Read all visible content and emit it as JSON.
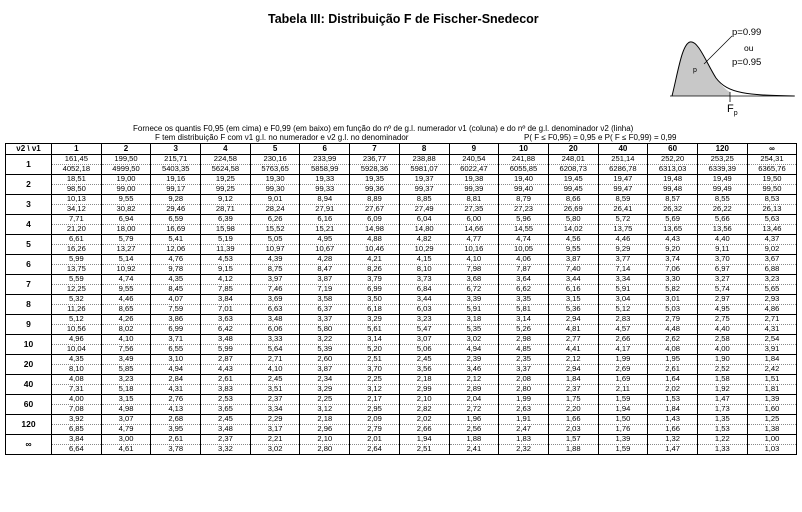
{
  "header": {
    "title": "Tabela III:   Distribuição F de Fischer-Snedecor"
  },
  "figure": {
    "label_top": "p=0.99",
    "label_or": "ou",
    "label_bottom": "p=0.95",
    "label_inner": "p",
    "label_fp": "F"
  },
  "description": {
    "line1": "Fornece os quantis F0,95 (em cima) e F0,99 (em baixo) em função do nº de g.l. numerador  ν1 (coluna) e do nº de g.l. denominador  ν2 (linha)",
    "line2": "F tem distribuição  F com ν1 g.l. no numerador e ν2 g.l. no denominador",
    "line2_right": "P( F ≤ F0,95) = 0,95  e  P( F ≤ F0,99) = 0,99"
  },
  "table": {
    "corner": "ν2 \\ ν1",
    "columns": [
      "1",
      "2",
      "3",
      "4",
      "5",
      "6",
      "7",
      "8",
      "9",
      "10",
      "20",
      "40",
      "60",
      "120",
      "∞"
    ],
    "rows": [
      {
        "label": "1",
        "p95": [
          "161,45",
          "199,50",
          "215,71",
          "224,58",
          "230,16",
          "233,99",
          "236,77",
          "238,88",
          "240,54",
          "241,88",
          "248,01",
          "251,14",
          "252,20",
          "253,25",
          "254,31"
        ],
        "p99": [
          "4052,18",
          "4999,50",
          "5403,35",
          "5624,58",
          "5763,65",
          "5858,99",
          "5928,36",
          "5981,07",
          "6022,47",
          "6055,85",
          "6208,73",
          "6286,78",
          "6313,03",
          "6339,39",
          "6365,76"
        ]
      },
      {
        "label": "2",
        "p95": [
          "18,51",
          "19,00",
          "19,16",
          "19,25",
          "19,30",
          "19,33",
          "19,35",
          "19,37",
          "19,38",
          "19,40",
          "19,45",
          "19,47",
          "19,48",
          "19,49",
          "19,50"
        ],
        "p99": [
          "98,50",
          "99,00",
          "99,17",
          "99,25",
          "99,30",
          "99,33",
          "99,36",
          "99,37",
          "99,39",
          "99,40",
          "99,45",
          "99,47",
          "99,48",
          "99,49",
          "99,50"
        ]
      },
      {
        "label": "3",
        "p95": [
          "10,13",
          "9,55",
          "9,28",
          "9,12",
          "9,01",
          "8,94",
          "8,89",
          "8,85",
          "8,81",
          "8,79",
          "8,66",
          "8,59",
          "8,57",
          "8,55",
          "8,53"
        ],
        "p99": [
          "34,12",
          "30,82",
          "29,46",
          "28,71",
          "28,24",
          "27,91",
          "27,67",
          "27,49",
          "27,35",
          "27,23",
          "26,69",
          "26,41",
          "26,32",
          "26,22",
          "26,13"
        ]
      },
      {
        "label": "4",
        "p95": [
          "7,71",
          "6,94",
          "6,59",
          "6,39",
          "6,26",
          "6,16",
          "6,09",
          "6,04",
          "6,00",
          "5,96",
          "5,80",
          "5,72",
          "5,69",
          "5,66",
          "5,63"
        ],
        "p99": [
          "21,20",
          "18,00",
          "16,69",
          "15,98",
          "15,52",
          "15,21",
          "14,98",
          "14,80",
          "14,66",
          "14,55",
          "14,02",
          "13,75",
          "13,65",
          "13,56",
          "13,46"
        ]
      },
      {
        "label": "5",
        "p95": [
          "6,61",
          "5,79",
          "5,41",
          "5,19",
          "5,05",
          "4,95",
          "4,88",
          "4,82",
          "4,77",
          "4,74",
          "4,56",
          "4,46",
          "4,43",
          "4,40",
          "4,37"
        ],
        "p99": [
          "16,26",
          "13,27",
          "12,06",
          "11,39",
          "10,97",
          "10,67",
          "10,46",
          "10,29",
          "10,16",
          "10,05",
          "9,55",
          "9,29",
          "9,20",
          "9,11",
          "9,02"
        ]
      },
      {
        "label": "6",
        "p95": [
          "5,99",
          "5,14",
          "4,76",
          "4,53",
          "4,39",
          "4,28",
          "4,21",
          "4,15",
          "4,10",
          "4,06",
          "3,87",
          "3,77",
          "3,74",
          "3,70",
          "3,67"
        ],
        "p99": [
          "13,75",
          "10,92",
          "9,78",
          "9,15",
          "8,75",
          "8,47",
          "8,26",
          "8,10",
          "7,98",
          "7,87",
          "7,40",
          "7,14",
          "7,06",
          "6,97",
          "6,88"
        ]
      },
      {
        "label": "7",
        "p95": [
          "5,59",
          "4,74",
          "4,35",
          "4,12",
          "3,97",
          "3,87",
          "3,79",
          "3,73",
          "3,68",
          "3,64",
          "3,44",
          "3,34",
          "3,30",
          "3,27",
          "3,23"
        ],
        "p99": [
          "12,25",
          "9,55",
          "8,45",
          "7,85",
          "7,46",
          "7,19",
          "6,99",
          "6,84",
          "6,72",
          "6,62",
          "6,16",
          "5,91",
          "5,82",
          "5,74",
          "5,65"
        ]
      },
      {
        "label": "8",
        "p95": [
          "5,32",
          "4,46",
          "4,07",
          "3,84",
          "3,69",
          "3,58",
          "3,50",
          "3,44",
          "3,39",
          "3,35",
          "3,15",
          "3,04",
          "3,01",
          "2,97",
          "2,93"
        ],
        "p99": [
          "11,26",
          "8,65",
          "7,59",
          "7,01",
          "6,63",
          "6,37",
          "6,18",
          "6,03",
          "5,91",
          "5,81",
          "5,36",
          "5,12",
          "5,03",
          "4,95",
          "4,86"
        ]
      },
      {
        "label": "9",
        "p95": [
          "5,12",
          "4,26",
          "3,86",
          "3,63",
          "3,48",
          "3,37",
          "3,29",
          "3,23",
          "3,18",
          "3,14",
          "2,94",
          "2,83",
          "2,79",
          "2,75",
          "2,71"
        ],
        "p99": [
          "10,56",
          "8,02",
          "6,99",
          "6,42",
          "6,06",
          "5,80",
          "5,61",
          "5,47",
          "5,35",
          "5,26",
          "4,81",
          "4,57",
          "4,48",
          "4,40",
          "4,31"
        ]
      },
      {
        "label": "10",
        "p95": [
          "4,96",
          "4,10",
          "3,71",
          "3,48",
          "3,33",
          "3,22",
          "3,14",
          "3,07",
          "3,02",
          "2,98",
          "2,77",
          "2,66",
          "2,62",
          "2,58",
          "2,54"
        ],
        "p99": [
          "10,04",
          "7,56",
          "6,55",
          "5,99",
          "5,64",
          "5,39",
          "5,20",
          "5,06",
          "4,94",
          "4,85",
          "4,41",
          "4,17",
          "4,08",
          "4,00",
          "3,91"
        ]
      },
      {
        "label": "20",
        "p95": [
          "4,35",
          "3,49",
          "3,10",
          "2,87",
          "2,71",
          "2,60",
          "2,51",
          "2,45",
          "2,39",
          "2,35",
          "2,12",
          "1,99",
          "1,95",
          "1,90",
          "1,84"
        ],
        "p99": [
          "8,10",
          "5,85",
          "4,94",
          "4,43",
          "4,10",
          "3,87",
          "3,70",
          "3,56",
          "3,46",
          "3,37",
          "2,94",
          "2,69",
          "2,61",
          "2,52",
          "2,42"
        ]
      },
      {
        "label": "40",
        "p95": [
          "4,08",
          "3,23",
          "2,84",
          "2,61",
          "2,45",
          "2,34",
          "2,25",
          "2,18",
          "2,12",
          "2,08",
          "1,84",
          "1,69",
          "1,64",
          "1,58",
          "1,51"
        ],
        "p99": [
          "7,31",
          "5,18",
          "4,31",
          "3,83",
          "3,51",
          "3,29",
          "3,12",
          "2,99",
          "2,89",
          "2,80",
          "2,37",
          "2,11",
          "2,02",
          "1,92",
          "1,81"
        ]
      },
      {
        "label": "60",
        "p95": [
          "4,00",
          "3,15",
          "2,76",
          "2,53",
          "2,37",
          "2,25",
          "2,17",
          "2,10",
          "2,04",
          "1,99",
          "1,75",
          "1,59",
          "1,53",
          "1,47",
          "1,39"
        ],
        "p99": [
          "7,08",
          "4,98",
          "4,13",
          "3,65",
          "3,34",
          "3,12",
          "2,95",
          "2,82",
          "2,72",
          "2,63",
          "2,20",
          "1,94",
          "1,84",
          "1,73",
          "1,60"
        ]
      },
      {
        "label": "120",
        "p95": [
          "3,92",
          "3,07",
          "2,68",
          "2,45",
          "2,29",
          "2,18",
          "2,09",
          "2,02",
          "1,96",
          "1,91",
          "1,66",
          "1,50",
          "1,43",
          "1,35",
          "1,25"
        ],
        "p99": [
          "6,85",
          "4,79",
          "3,95",
          "3,48",
          "3,17",
          "2,96",
          "2,79",
          "2,66",
          "2,56",
          "2,47",
          "2,03",
          "1,76",
          "1,66",
          "1,53",
          "1,38"
        ]
      },
      {
        "label": "∞",
        "p95": [
          "3,84",
          "3,00",
          "2,61",
          "2,37",
          "2,21",
          "2,10",
          "2,01",
          "1,94",
          "1,88",
          "1,83",
          "1,57",
          "1,39",
          "1,32",
          "1,22",
          "1,00"
        ],
        "p99": [
          "6,64",
          "4,61",
          "3,78",
          "3,32",
          "3,02",
          "2,80",
          "2,64",
          "2,51",
          "2,41",
          "2,32",
          "1,88",
          "1,59",
          "1,47",
          "1,33",
          "1,03"
        ]
      }
    ]
  }
}
